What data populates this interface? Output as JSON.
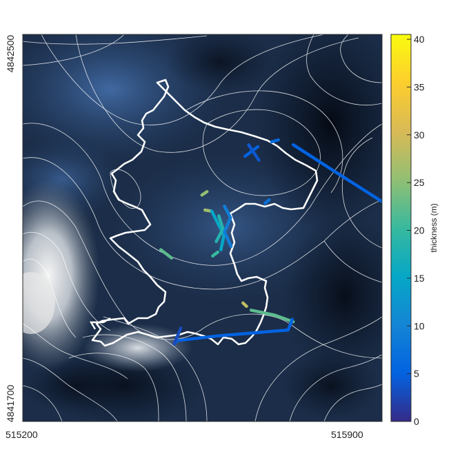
{
  "chart_data": {
    "type": "heatmap",
    "title": "",
    "xlabel": "",
    "ylabel": "",
    "x_ticks": [
      "515200",
      "515900"
    ],
    "y_ticks": [
      "4842500",
      "4841700"
    ],
    "xlim": [
      515200,
      515900
    ],
    "ylim": [
      4841700,
      4842500
    ],
    "colorbar": {
      "label": "thickness (m)",
      "range": [
        0,
        40
      ],
      "ticks": [
        "0",
        "5",
        "10",
        "15",
        "20",
        "25",
        "30",
        "35",
        "40"
      ],
      "colormap": "parula"
    },
    "background": "grayscale-blue shaded DEM with white contour lines",
    "outline_color": "#ffffff",
    "tracks": [
      {
        "thickness": 5,
        "points": [
          [
            515633,
            4842248
          ],
          [
            515658,
            4842268
          ]
        ]
      },
      {
        "thickness": 4,
        "points": [
          [
            515640,
            4842272
          ],
          [
            515660,
            4842240
          ]
        ]
      },
      {
        "thickness": 6,
        "points": [
          [
            515685,
            4842278
          ],
          [
            515698,
            4842282
          ]
        ]
      },
      {
        "thickness": 5,
        "points": [
          [
            515727,
            4842272
          ],
          [
            515800,
            4842222
          ],
          [
            515880,
            4842168
          ],
          [
            515908,
            4842149
          ]
        ]
      },
      {
        "thickness": 7,
        "points": [
          [
            515672,
            4842151
          ],
          [
            515680,
            4842158
          ]
        ]
      },
      {
        "thickness": 25,
        "points": [
          [
            515549,
            4842168
          ],
          [
            515559,
            4842175
          ]
        ]
      },
      {
        "thickness": 26,
        "points": [
          [
            515555,
            4842137
          ],
          [
            515566,
            4842135
          ]
        ]
      },
      {
        "thickness": 15,
        "points": [
          [
            515568,
            4842135
          ],
          [
            515580,
            4842110
          ],
          [
            515592,
            4842085
          ],
          [
            515586,
            4842055
          ]
        ]
      },
      {
        "thickness": 18,
        "points": [
          [
            515582,
            4842125
          ],
          [
            515590,
            4842098
          ],
          [
            515577,
            4842072
          ]
        ]
      },
      {
        "thickness": 9,
        "points": [
          [
            515593,
            4842145
          ],
          [
            515605,
            4842121
          ],
          [
            515593,
            4842092
          ],
          [
            515606,
            4842062
          ]
        ]
      },
      {
        "thickness": 20,
        "points": [
          [
            515570,
            4842042
          ],
          [
            515580,
            4842050
          ]
        ]
      },
      {
        "thickness": 22,
        "points": [
          [
            515469,
            4842055
          ],
          [
            515490,
            4842038
          ]
        ]
      },
      {
        "thickness": 28,
        "points": [
          [
            515629,
            4841945
          ],
          [
            515636,
            4841938
          ]
        ]
      },
      {
        "thickness": 22,
        "points": [
          [
            515645,
            4841930
          ],
          [
            515690,
            4841920
          ],
          [
            515727,
            4841906
          ]
        ]
      },
      {
        "thickness": 5,
        "points": [
          [
            515725,
            4841911
          ],
          [
            515717,
            4841889
          ],
          [
            515580,
            4841877
          ],
          [
            515500,
            4841867
          ],
          [
            515498,
            4841863
          ]
        ]
      },
      {
        "thickness": 3,
        "points": [
          [
            515495,
            4841860
          ],
          [
            515508,
            4841893
          ]
        ]
      }
    ]
  }
}
